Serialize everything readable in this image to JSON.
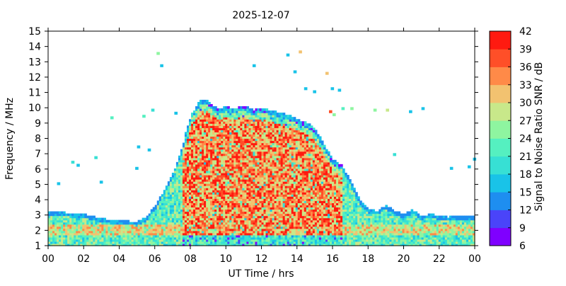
{
  "chart_data": {
    "type": "heatmap",
    "title": "2025-12-07",
    "xlabel": "UT Time / hrs",
    "ylabel": "Frequency / MHz",
    "xlim": [
      0,
      24
    ],
    "ylim": [
      1,
      15
    ],
    "x_ticks": [
      "00",
      "02",
      "04",
      "06",
      "08",
      "10",
      "12",
      "14",
      "16",
      "18",
      "20",
      "22",
      "00"
    ],
    "y_ticks": [
      "1",
      "2",
      "3",
      "4",
      "5",
      "6",
      "7",
      "8",
      "9",
      "10",
      "11",
      "12",
      "13",
      "14",
      "15"
    ],
    "colorbar": {
      "label": "Signal to Noise Ratio SNR / dB",
      "min": 6,
      "max": 42,
      "ticks": [
        "6",
        "9",
        "12",
        "15",
        "18",
        "21",
        "24",
        "27",
        "30",
        "33",
        "36",
        "39",
        "42"
      ],
      "colors": [
        "#7f00ff",
        "#4a44f9",
        "#1e8ef0",
        "#19c3e8",
        "#37e0d4",
        "#55f0c0",
        "#8ef5a0",
        "#c8e88a",
        "#f2c270",
        "#ff8a48",
        "#ff4f28",
        "#ff1a10"
      ]
    },
    "envelope_top_mhz": [
      [
        0,
        3.1
      ],
      [
        0.5,
        3.2
      ],
      [
        1,
        3.1
      ],
      [
        2,
        3.0
      ],
      [
        3,
        2.7
      ],
      [
        4,
        2.6
      ],
      [
        5,
        2.5
      ],
      [
        5.5,
        2.8
      ],
      [
        6,
        3.5
      ],
      [
        6.5,
        4.5
      ],
      [
        7,
        5.6
      ],
      [
        7.3,
        6.5
      ],
      [
        7.6,
        7.6
      ],
      [
        7.8,
        8.6
      ],
      [
        8.1,
        9.6
      ],
      [
        8.6,
        10.5
      ],
      [
        9,
        10.4
      ],
      [
        9.5,
        9.9
      ],
      [
        10,
        10.0
      ],
      [
        10.5,
        9.9
      ],
      [
        11,
        10.1
      ],
      [
        11.5,
        9.8
      ],
      [
        12,
        9.9
      ],
      [
        12.5,
        9.8
      ],
      [
        13,
        9.6
      ],
      [
        13.5,
        9.5
      ],
      [
        14,
        9.2
      ],
      [
        14.5,
        9.0
      ],
      [
        15,
        8.6
      ],
      [
        15.5,
        7.6
      ],
      [
        16,
        6.6
      ],
      [
        16.5,
        6.2
      ],
      [
        17,
        5.2
      ],
      [
        17.5,
        4.0
      ],
      [
        18,
        3.3
      ],
      [
        18.5,
        3.2
      ],
      [
        19,
        3.6
      ],
      [
        19.5,
        3.2
      ],
      [
        20,
        3.0
      ],
      [
        20.5,
        3.3
      ],
      [
        21,
        2.9
      ],
      [
        21.5,
        3.0
      ],
      [
        22,
        2.9
      ],
      [
        22.5,
        2.8
      ],
      [
        23,
        2.9
      ],
      [
        23.5,
        2.9
      ],
      [
        24,
        2.9
      ]
    ],
    "intense_region": {
      "x_range": [
        7.5,
        16.5
      ],
      "y_range": [
        1.5,
        10.3
      ],
      "snr_db": 39
    },
    "scattered_detections": [
      [
        1.3,
        6.4,
        18
      ],
      [
        1.6,
        6.2,
        15
      ],
      [
        2.6,
        6.7,
        18
      ],
      [
        0.5,
        5.0,
        15
      ],
      [
        3.5,
        9.3,
        21
      ],
      [
        5.3,
        9.4,
        21
      ],
      [
        5.8,
        9.8,
        18
      ],
      [
        6.1,
        13.5,
        24
      ],
      [
        6.3,
        12.7,
        15
      ],
      [
        7.1,
        9.6,
        15
      ],
      [
        11.5,
        12.7,
        15
      ],
      [
        13.4,
        13.4,
        15
      ],
      [
        14.1,
        13.6,
        30
      ],
      [
        13.8,
        12.3,
        15
      ],
      [
        14.4,
        11.2,
        15
      ],
      [
        14.9,
        11.0,
        15
      ],
      [
        15.6,
        12.2,
        30
      ],
      [
        15.9,
        11.2,
        15
      ],
      [
        16.3,
        11.1,
        15
      ],
      [
        16.5,
        9.9,
        21
      ],
      [
        17.0,
        9.9,
        24
      ],
      [
        18.3,
        9.8,
        24
      ],
      [
        19.0,
        9.8,
        27
      ],
      [
        19.4,
        6.9,
        18
      ],
      [
        20.3,
        9.7,
        15
      ],
      [
        21.0,
        9.9,
        15
      ],
      [
        22.6,
        6.0,
        15
      ],
      [
        23.6,
        6.1,
        15
      ],
      [
        23.9,
        6.6,
        15
      ],
      [
        15.8,
        9.7,
        36
      ],
      [
        16.0,
        9.5,
        24
      ],
      [
        5.0,
        7.4,
        15
      ],
      [
        5.6,
        7.2,
        15
      ],
      [
        4.9,
        6.0,
        15
      ],
      [
        2.9,
        5.1,
        15
      ]
    ]
  }
}
